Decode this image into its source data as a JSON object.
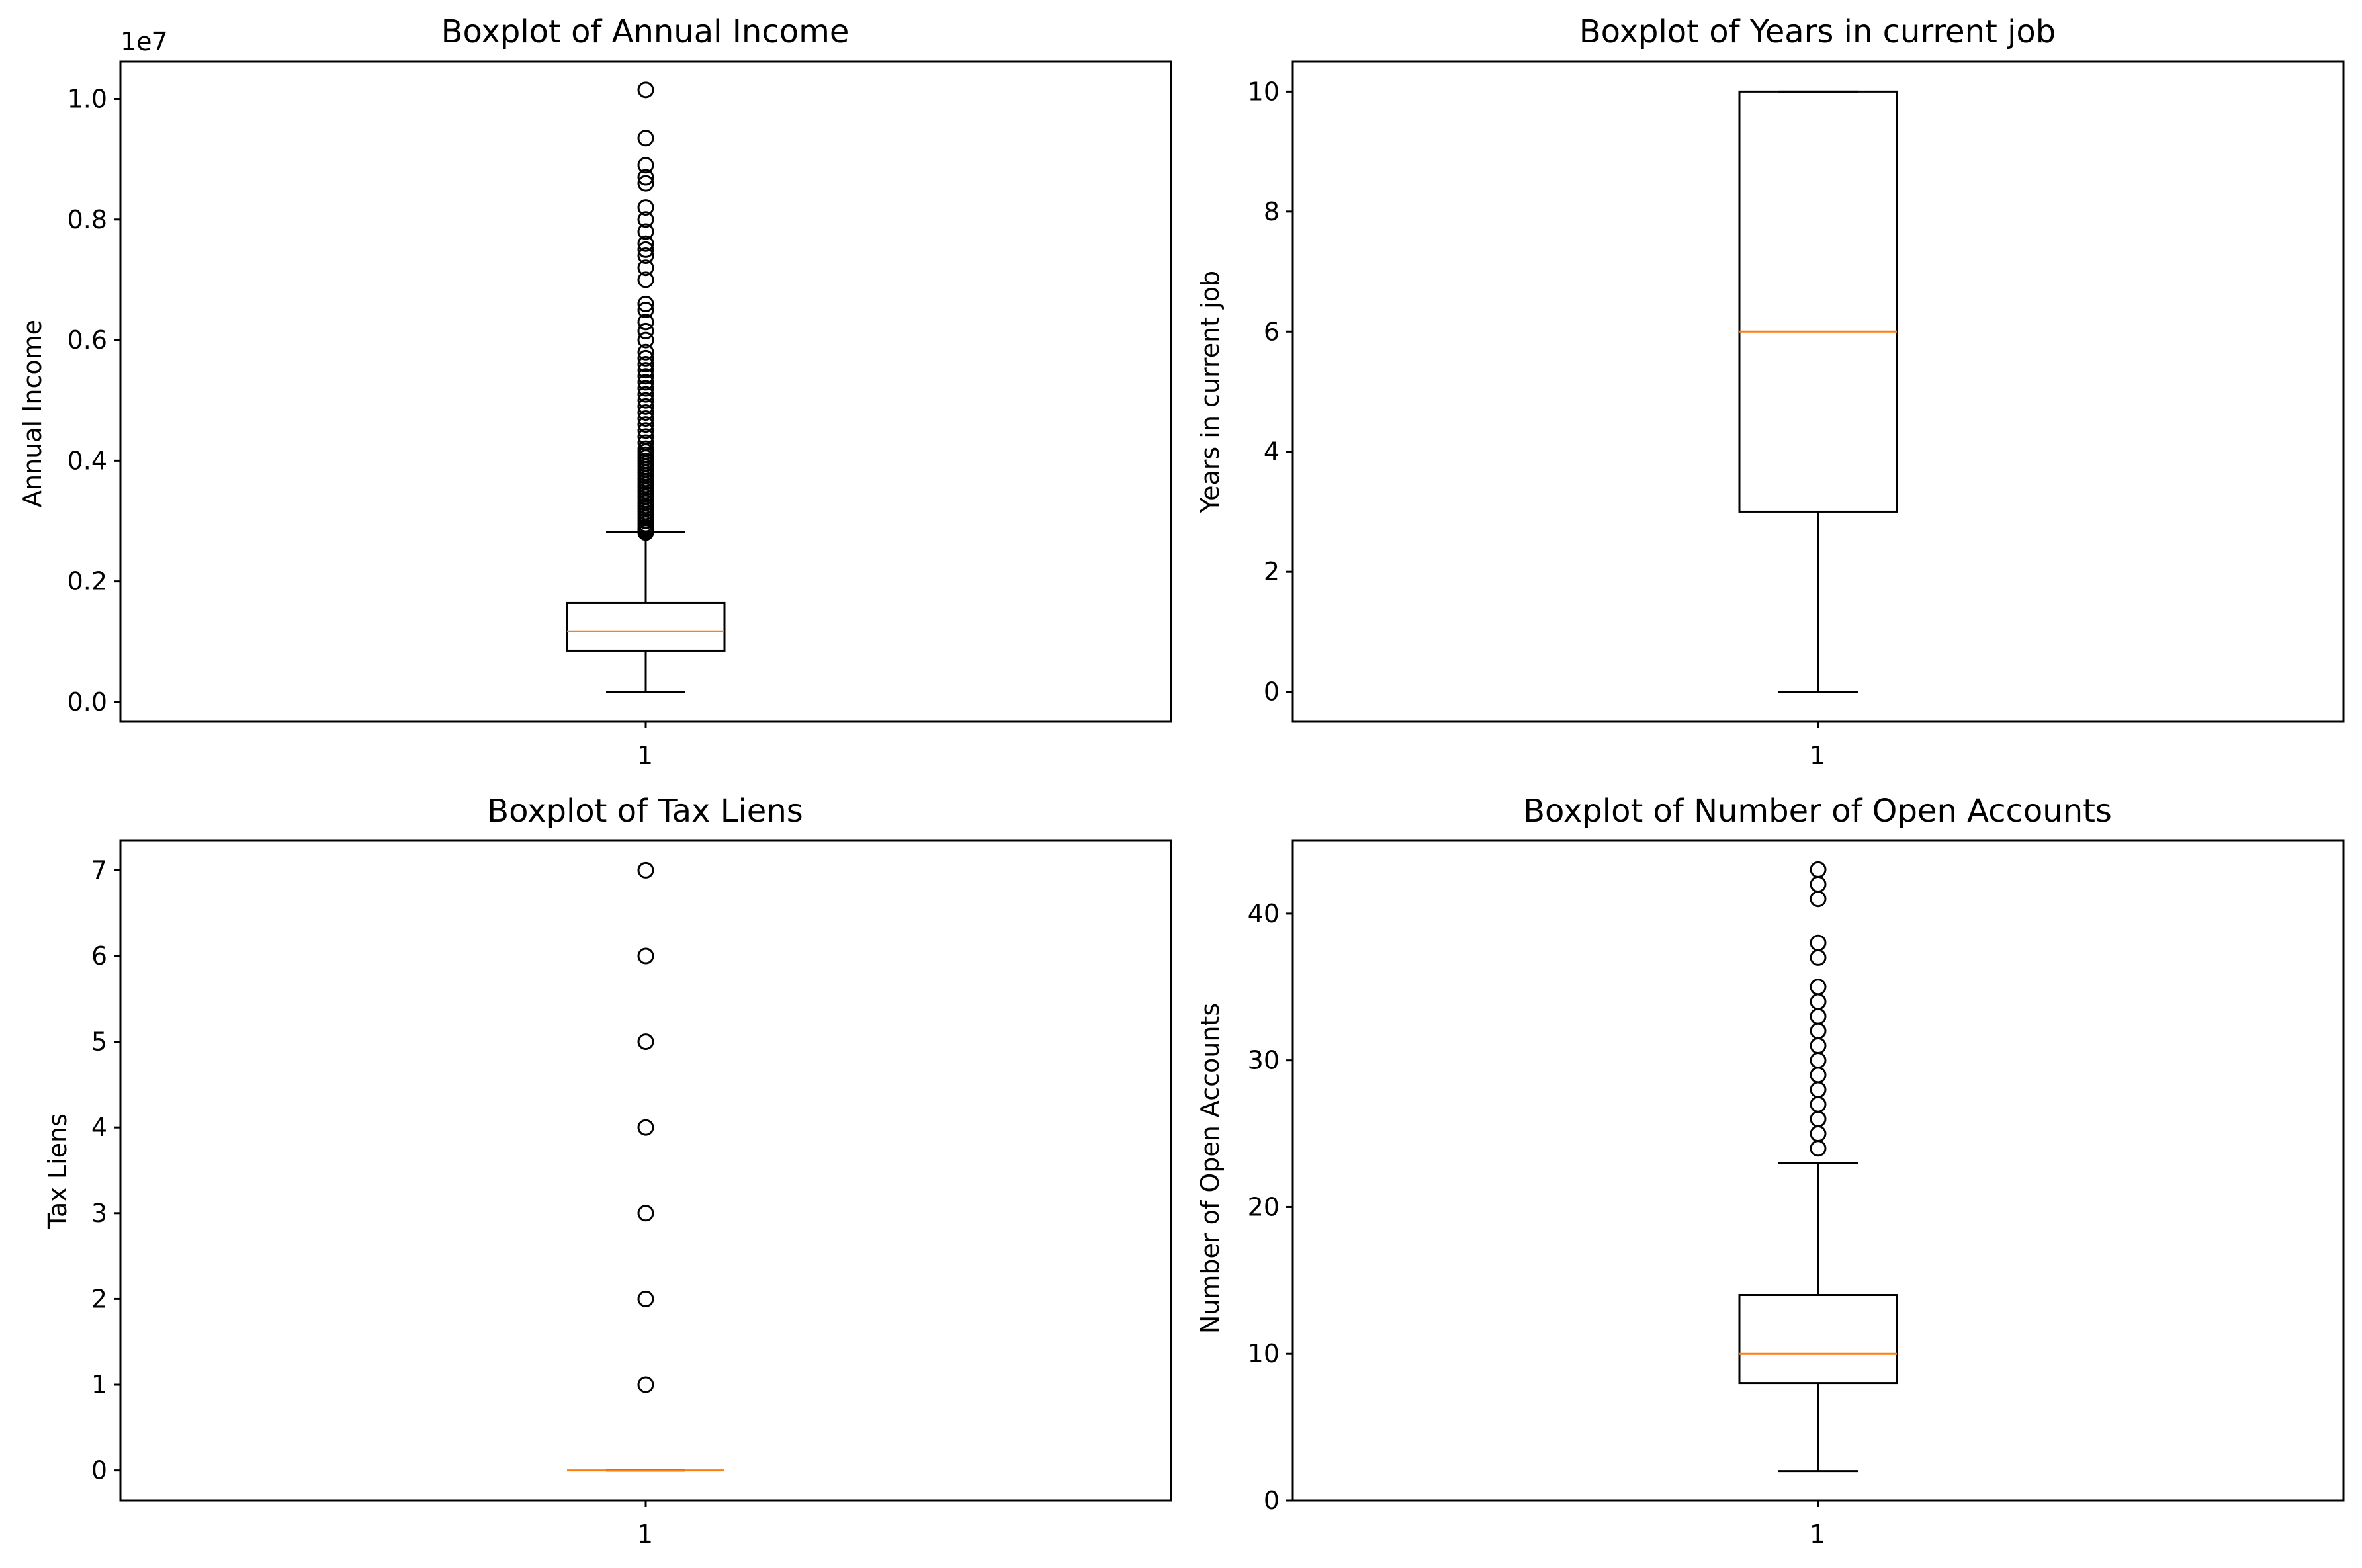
{
  "chart_data": [
    {
      "type": "boxplot",
      "title": "Boxplot of Annual Income",
      "xlabel": "",
      "ylabel": "Annual Income",
      "offset_label": "1e7",
      "x_ticks": [
        "1"
      ],
      "ylim": [
        -0.033,
        1.062
      ],
      "y_ticks": [
        0.0,
        0.2,
        0.4,
        0.6,
        0.8,
        1.0
      ],
      "y_tick_labels": [
        "0.0",
        "0.2",
        "0.4",
        "0.6",
        "0.8",
        "1.0"
      ],
      "box": {
        "whisker_low": 0.016,
        "q1": 0.085,
        "median": 0.117,
        "q3": 0.164,
        "whisker_high": 0.282
      },
      "outliers": [
        0.281,
        0.284,
        0.287,
        0.29,
        0.295,
        0.3,
        0.305,
        0.31,
        0.315,
        0.32,
        0.325,
        0.33,
        0.335,
        0.34,
        0.345,
        0.35,
        0.355,
        0.36,
        0.365,
        0.37,
        0.375,
        0.38,
        0.385,
        0.39,
        0.395,
        0.4,
        0.405,
        0.41,
        0.415,
        0.42,
        0.43,
        0.44,
        0.45,
        0.46,
        0.47,
        0.48,
        0.49,
        0.5,
        0.51,
        0.52,
        0.53,
        0.54,
        0.55,
        0.56,
        0.57,
        0.58,
        0.6,
        0.615,
        0.63,
        0.65,
        0.66,
        0.7,
        0.72,
        0.74,
        0.75,
        0.76,
        0.78,
        0.8,
        0.82,
        0.86,
        0.87,
        0.89,
        0.935,
        1.015
      ]
    },
    {
      "type": "boxplot",
      "title": "Boxplot of Years in current job",
      "xlabel": "",
      "ylabel": "Years in current job",
      "x_ticks": [
        "1"
      ],
      "ylim": [
        -0.5,
        10.5
      ],
      "y_ticks": [
        0,
        2,
        4,
        6,
        8,
        10
      ],
      "y_tick_labels": [
        "0",
        "2",
        "4",
        "6",
        "8",
        "10"
      ],
      "box": {
        "whisker_low": 0,
        "q1": 3,
        "median": 6,
        "q3": 10,
        "whisker_high": 10
      },
      "outliers": []
    },
    {
      "type": "boxplot",
      "title": "Boxplot of Tax Liens",
      "xlabel": "",
      "ylabel": "Tax Liens",
      "x_ticks": [
        "1"
      ],
      "ylim": [
        -0.35,
        7.35
      ],
      "y_ticks": [
        0,
        1,
        2,
        3,
        4,
        5,
        6,
        7
      ],
      "y_tick_labels": [
        "0",
        "1",
        "2",
        "3",
        "4",
        "5",
        "6",
        "7"
      ],
      "box": {
        "whisker_low": 0,
        "q1": 0,
        "median": 0,
        "q3": 0,
        "whisker_high": 0
      },
      "outliers": [
        1,
        2,
        3,
        4,
        5,
        6,
        7
      ]
    },
    {
      "type": "boxplot",
      "title": "Boxplot of Number of Open Accounts",
      "xlabel": "",
      "ylabel": "Number of Open Accounts",
      "x_ticks": [
        "1"
      ],
      "ylim": [
        0,
        45
      ],
      "y_ticks": [
        0,
        10,
        20,
        30,
        40
      ],
      "y_tick_labels": [
        "0",
        "10",
        "20",
        "30",
        "40"
      ],
      "box": {
        "whisker_low": 2,
        "q1": 8,
        "median": 10,
        "q3": 14,
        "whisker_high": 23
      },
      "outliers": [
        24,
        25,
        26,
        27,
        28,
        29,
        30,
        31,
        32,
        33,
        34,
        35,
        37,
        38,
        41,
        42,
        43
      ]
    }
  ],
  "colors": {
    "median": "#ff7f0e",
    "line": "#000000"
  }
}
